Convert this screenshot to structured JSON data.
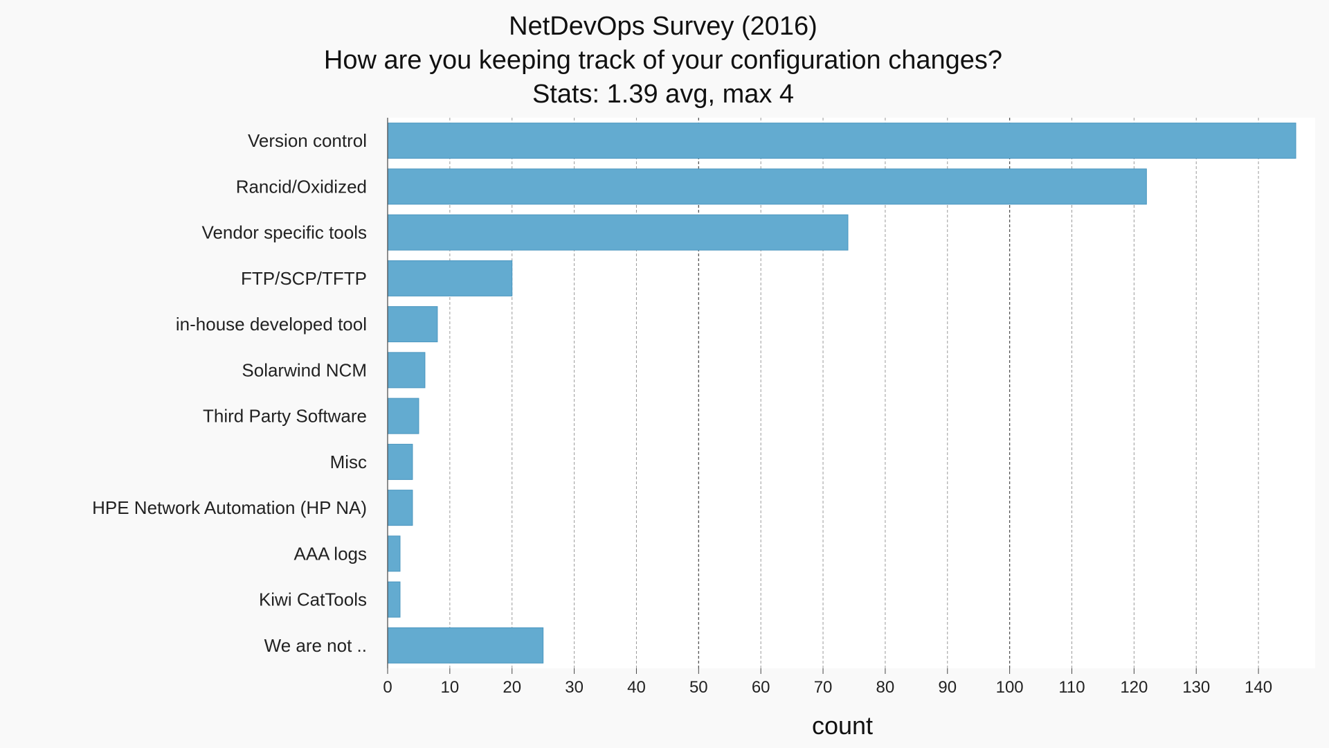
{
  "chart_data": {
    "type": "bar",
    "orientation": "horizontal",
    "title_lines": [
      "NetDevOps Survey (2016)",
      "How are you keeping track of your configuration changes?",
      "Stats: 1.39 avg, max 4"
    ],
    "xlabel": "count",
    "ylabel": "",
    "categories": [
      "Version control",
      "Rancid/Oxidized",
      "Vendor specific tools",
      "FTP/SCP/TFTP",
      "in-house developed tool",
      "Solarwind NCM",
      "Third Party Software",
      "Misc",
      "HPE Network Automation (HP NA)",
      "AAA logs",
      "Kiwi CatTools",
      "We are not .."
    ],
    "values": [
      146,
      122,
      74,
      20,
      8,
      6,
      5,
      4,
      4,
      2,
      2,
      25
    ],
    "xlim": [
      0,
      146
    ],
    "xticks": [
      0,
      10,
      20,
      30,
      40,
      50,
      60,
      70,
      80,
      90,
      100,
      110,
      120,
      130,
      140
    ],
    "grid": true,
    "colors": {
      "bar": "#63abd0",
      "bar_edge": "#4a96bf",
      "plot_bg": "#ffffff",
      "page_bg": "#f9f9f9",
      "grid": "#999999",
      "grid_major": "#555555"
    }
  }
}
